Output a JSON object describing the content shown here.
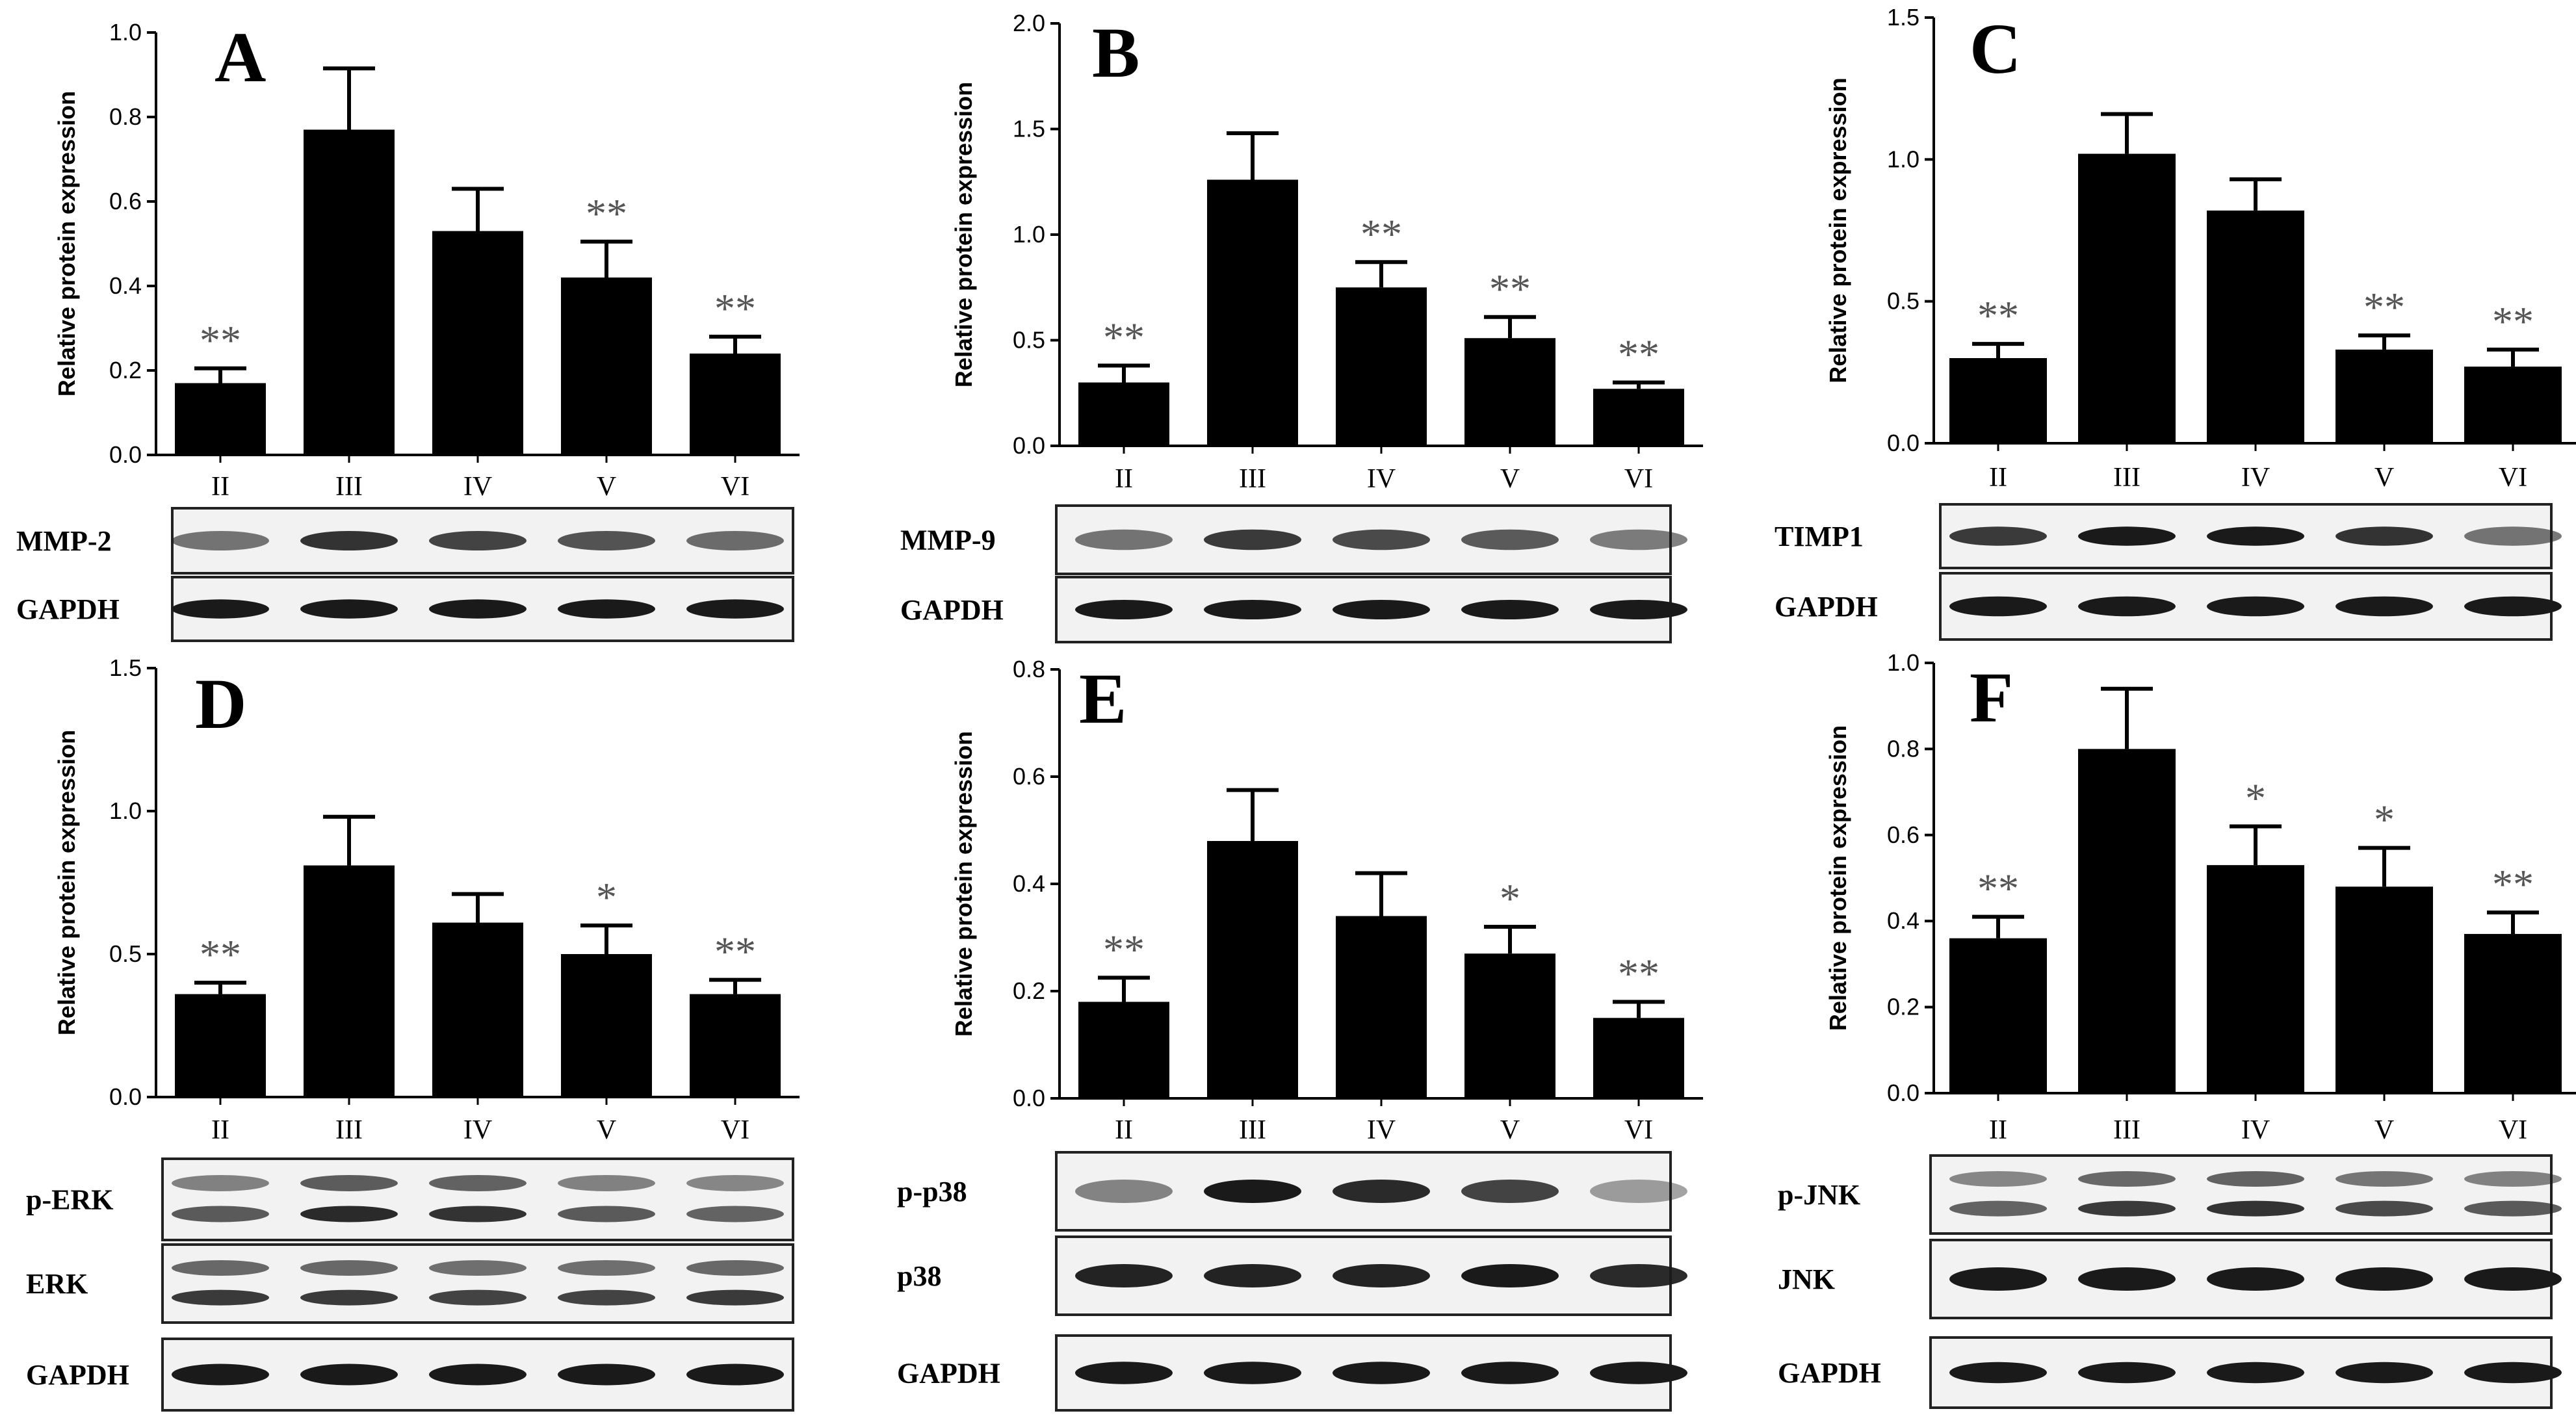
{
  "colors": {
    "bar": "#000000",
    "axis": "#000000",
    "band": "#1a1a1a",
    "blot_bg": "#f2f2f2",
    "star": "#555555"
  },
  "chart_data": [
    {
      "type": "bar",
      "panel": "A",
      "title": "",
      "ylabel": "Relative protein expression",
      "xlabel": "",
      "categories": [
        "II",
        "III",
        "IV",
        "V",
        "VI"
      ],
      "values": [
        0.17,
        0.77,
        0.53,
        0.42,
        0.24
      ],
      "errors": [
        0.035,
        0.145,
        0.1,
        0.085,
        0.04
      ],
      "significance": [
        "**",
        "",
        "",
        "**",
        "**"
      ],
      "ylim": [
        0,
        1.0
      ],
      "yticks": [
        "0.0",
        "0.2",
        "0.4",
        "0.6",
        "0.8",
        "1.0"
      ],
      "blots": [
        {
          "label": "MMP-2",
          "double": false,
          "intensity": [
            0.45,
            0.85,
            0.75,
            0.65,
            0.5
          ]
        },
        {
          "label": "GAPDH",
          "double": false,
          "intensity": [
            1,
            1,
            1,
            1,
            1
          ]
        }
      ]
    },
    {
      "type": "bar",
      "panel": "B",
      "title": "",
      "ylabel": "Relative protein expression",
      "xlabel": "",
      "categories": [
        "II",
        "III",
        "IV",
        "V",
        "VI"
      ],
      "values": [
        0.3,
        1.26,
        0.75,
        0.51,
        0.27
      ],
      "errors": [
        0.08,
        0.22,
        0.12,
        0.1,
        0.03
      ],
      "significance": [
        "**",
        "",
        "**",
        "**",
        "**"
      ],
      "ylim": [
        0,
        2.0
      ],
      "yticks": [
        "0.0",
        "0.5",
        "1.0",
        "1.5",
        "2.0"
      ],
      "blots": [
        {
          "label": "MMP-9",
          "double": false,
          "intensity": [
            0.45,
            0.8,
            0.7,
            0.6,
            0.4
          ]
        },
        {
          "label": "GAPDH",
          "double": false,
          "intensity": [
            1,
            1,
            1,
            1,
            1
          ]
        }
      ]
    },
    {
      "type": "bar",
      "panel": "C",
      "title": "",
      "ylabel": "Relative protein expression",
      "xlabel": "",
      "categories": [
        "II",
        "III",
        "IV",
        "V",
        "VI"
      ],
      "values": [
        0.3,
        1.02,
        0.82,
        0.33,
        0.27
      ],
      "errors": [
        0.05,
        0.14,
        0.11,
        0.05,
        0.06
      ],
      "significance": [
        "**",
        "",
        "",
        "**",
        "**"
      ],
      "ylim": [
        0,
        1.5
      ],
      "yticks": [
        "0.0",
        "0.5",
        "1.0",
        "1.5"
      ],
      "blots": [
        {
          "label": "TIMP1",
          "double": false,
          "intensity": [
            0.8,
            1,
            1,
            0.85,
            0.45
          ]
        },
        {
          "label": "GAPDH",
          "double": false,
          "intensity": [
            1,
            1,
            1,
            1,
            1
          ]
        }
      ]
    },
    {
      "type": "bar",
      "panel": "D",
      "title": "",
      "ylabel": "Relative protein expression",
      "xlabel": "",
      "categories": [
        "II",
        "III",
        "IV",
        "V",
        "VI"
      ],
      "values": [
        0.36,
        0.81,
        0.61,
        0.5,
        0.36
      ],
      "errors": [
        0.04,
        0.17,
        0.1,
        0.1,
        0.05
      ],
      "significance": [
        "**",
        "",
        "",
        "*",
        "**"
      ],
      "ylim": [
        0,
        1.5
      ],
      "yticks": [
        "0.0",
        "0.5",
        "1.0",
        "1.5"
      ],
      "blots": [
        {
          "label": "p-ERK",
          "double": true,
          "intensity": [
            0.6,
            0.9,
            0.85,
            0.6,
            0.55
          ]
        },
        {
          "label": "ERK",
          "double": true,
          "intensity": [
            0.8,
            0.8,
            0.75,
            0.75,
            0.8
          ]
        },
        {
          "label": "GAPDH",
          "double": false,
          "intensity": [
            1,
            1,
            1,
            1,
            1
          ]
        }
      ]
    },
    {
      "type": "bar",
      "panel": "E",
      "title": "",
      "ylabel": "Relative protein expression",
      "xlabel": "",
      "categories": [
        "II",
        "III",
        "IV",
        "V",
        "VI"
      ],
      "values": [
        0.18,
        0.48,
        0.34,
        0.27,
        0.15
      ],
      "errors": [
        0.045,
        0.095,
        0.08,
        0.05,
        0.03
      ],
      "significance": [
        "**",
        "",
        "",
        "*",
        "**"
      ],
      "ylim": [
        0,
        0.8
      ],
      "yticks": [
        "0.0",
        "0.2",
        "0.4",
        "0.6",
        "0.8"
      ],
      "blots": [
        {
          "label": "p-p38",
          "double": false,
          "intensity": [
            0.35,
            1,
            0.9,
            0.75,
            0.2
          ]
        },
        {
          "label": "p38",
          "double": false,
          "intensity": [
            0.95,
            0.95,
            0.95,
            1,
            0.9
          ]
        },
        {
          "label": "GAPDH",
          "double": false,
          "intensity": [
            1,
            1,
            1,
            1,
            1
          ]
        }
      ]
    },
    {
      "type": "bar",
      "panel": "F",
      "title": "",
      "ylabel": "Relative protein expression",
      "xlabel": "",
      "categories": [
        "II",
        "III",
        "IV",
        "V",
        "VI"
      ],
      "values": [
        0.36,
        0.8,
        0.53,
        0.48,
        0.37
      ],
      "errors": [
        0.05,
        0.14,
        0.09,
        0.09,
        0.05
      ],
      "significance": [
        "**",
        "",
        "*",
        "*",
        "**"
      ],
      "ylim": [
        0,
        1.0
      ],
      "yticks": [
        "0.0",
        "0.2",
        "0.4",
        "0.6",
        "0.8",
        "1.0"
      ],
      "blots": [
        {
          "label": "p-JNK",
          "double": true,
          "intensity": [
            0.55,
            0.8,
            0.85,
            0.7,
            0.6
          ]
        },
        {
          "label": "JNK",
          "double": false,
          "intensity": [
            1,
            1,
            1,
            1,
            1
          ]
        },
        {
          "label": "GAPDH",
          "double": false,
          "intensity": [
            1,
            1,
            1,
            1,
            1
          ]
        }
      ]
    }
  ]
}
